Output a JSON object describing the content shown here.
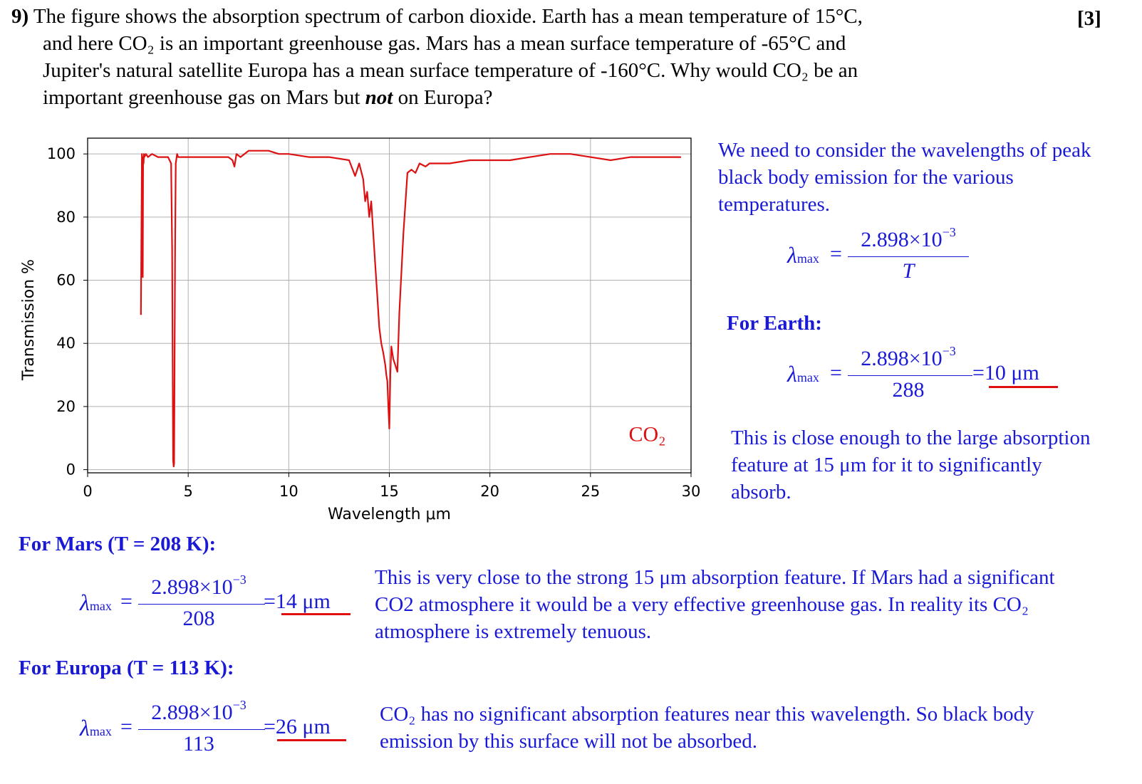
{
  "question": {
    "number": "9)",
    "lines": [
      "The figure shows the absorption spectrum of carbon dioxide. Earth has a mean temperature of 15°C,",
      "and here CO₂ is an important greenhouse gas. Mars has a mean surface temperature of -65°C and",
      "Jupiter's natural satellite Europa has a mean surface temperature of -160°C. Why would CO₂ be an"
    ],
    "last_line_before": "important greenhouse gas on Mars but ",
    "last_line_emphasis": "not",
    "last_line_after": " on Europa?",
    "marks": "[3]"
  },
  "chart_data": {
    "type": "line",
    "xlabel": "Wavelength μm",
    "ylabel": "Transmission %",
    "xlim": [
      0,
      30
    ],
    "ylim": [
      -1,
      105
    ],
    "xticks": [
      0,
      5,
      10,
      15,
      20,
      25,
      30
    ],
    "yticks": [
      0,
      20,
      40,
      60,
      80,
      100
    ],
    "grid": true,
    "annotation": "CO₂",
    "series": [
      {
        "color": "#dd1111",
        "x": [
          2.65,
          2.7,
          2.72,
          2.74,
          2.76,
          2.78,
          2.8,
          2.82,
          2.9,
          3.0,
          3.2,
          3.5,
          4.0,
          4.15,
          4.2,
          4.25,
          4.28,
          4.3,
          4.35,
          4.38,
          4.45,
          4.5,
          4.6,
          5.0,
          5.5,
          6.0,
          6.5,
          7.0,
          7.2,
          7.3,
          7.4,
          7.6,
          8.0,
          8.5,
          9.0,
          9.5,
          10.0,
          11.0,
          12.0,
          13.0,
          13.3,
          13.5,
          13.7,
          13.8,
          13.9,
          14.0,
          14.1,
          14.2,
          14.3,
          14.4,
          14.5,
          14.6,
          14.7,
          14.8,
          14.85,
          14.9,
          14.95,
          15.0,
          15.05,
          15.1,
          15.2,
          15.3,
          15.4,
          15.5,
          15.7,
          15.9,
          16.1,
          16.3,
          16.5,
          16.8,
          17.0,
          17.5,
          18.0,
          19.0,
          20.0,
          21.0,
          22.0,
          23.0,
          24.0,
          25.0,
          26.0,
          27.0,
          28.0,
          29.0,
          29.5
        ],
        "y": [
          49,
          100,
          90,
          61,
          99,
          97,
          100,
          99,
          100,
          99,
          100,
          99,
          99,
          97,
          70,
          3,
          1,
          2,
          70,
          97,
          100,
          99,
          99,
          99,
          99,
          99,
          99,
          99,
          98,
          96,
          100,
          99,
          101,
          101,
          101,
          100,
          100,
          99,
          99,
          98,
          93,
          97,
          92,
          85,
          88,
          80,
          85,
          75,
          65,
          55,
          45,
          40,
          37,
          33,
          30,
          28,
          20,
          13,
          30,
          39,
          35,
          33,
          31,
          50,
          75,
          94,
          95,
          94,
          97,
          96,
          97,
          97,
          97,
          98,
          98,
          98,
          99,
          100,
          100,
          99,
          98,
          99,
          99,
          99,
          99
        ]
      }
    ]
  },
  "answer": {
    "intro": "We need to consider the wavelengths of peak black body emission for the various temperatures.",
    "lambda_symbol": "λ",
    "lambda_sub": "max",
    "equals": "=",
    "numerator_mantissa": "2.898×10",
    "numerator_exponent": "−3",
    "generic_denominator": "T",
    "earth": {
      "heading": "For Earth:",
      "denominator": "288",
      "result": "=10 μm",
      "comment": "This is close enough to the large absorption feature at 15 μm for it to significantly absorb."
    },
    "mars": {
      "heading": "For Mars (T = 208 K):",
      "denominator": "208",
      "result": "=14 μm",
      "comment": "This is very close to the strong 15 μm absorption feature. If Mars had a significant CO2 atmosphere it would be a very effective greenhouse gas. In reality its CO₂ atmosphere is extremely tenuous."
    },
    "europa": {
      "heading": "For Europa (T = 113 K):",
      "denominator": "113",
      "result": "=26 μm",
      "comment": "CO₂ has no significant absorption features near this wavelength. So black body emission by this surface will not be absorbed."
    }
  }
}
